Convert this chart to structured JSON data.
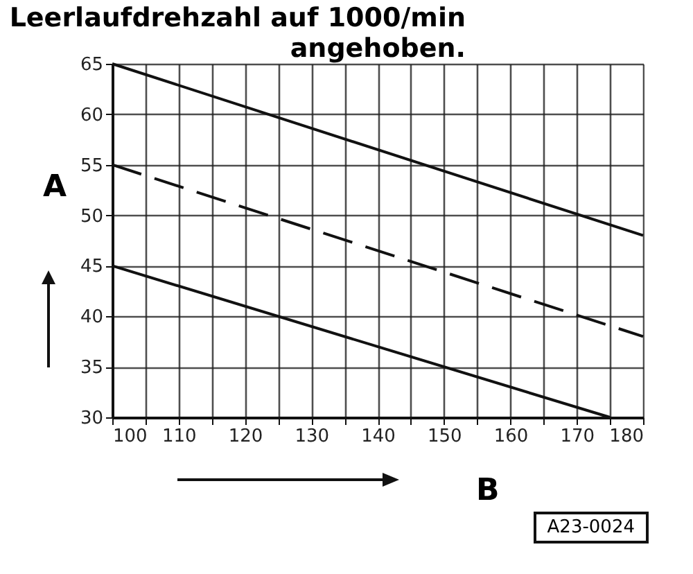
{
  "chart_data": {
    "type": "line",
    "title": "Leerlaufdrehzahl auf 1000/min angehoben.",
    "xlabel": "B",
    "ylabel": "A",
    "series": [
      {
        "color": "#111111",
        "x": [
          100,
          180
        ],
        "values": [
          65,
          48
        ],
        "line_style": "solid"
      },
      {
        "color": "#111111",
        "x": [
          100,
          180
        ],
        "values": [
          55,
          38
        ],
        "line_style": "dashed"
      },
      {
        "color": "#111111",
        "x": [
          100,
          175
        ],
        "values": [
          45,
          30
        ],
        "line_style": "solid"
      }
    ],
    "xlim": [
      100,
      180
    ],
    "ylim": [
      30,
      65
    ],
    "xticks": [
      100,
      {
        "value": 105,
        "label": null
      },
      110,
      {
        "value": 115,
        "label": null
      },
      120,
      {
        "value": 125,
        "label": null
      },
      130,
      {
        "value": 135,
        "label": null
      },
      140,
      {
        "value": 145,
        "label": null
      },
      150,
      {
        "value": 155,
        "label": null
      },
      160,
      {
        "value": 165,
        "label": null
      },
      170,
      {
        "value": 175,
        "label": null
      },
      180
    ],
    "yticks": [
      30,
      35,
      40,
      45,
      50,
      55,
      60,
      65
    ],
    "grid": true,
    "legend": false,
    "marker": "none",
    "annotations": [
      "A23-0024"
    ]
  }
}
